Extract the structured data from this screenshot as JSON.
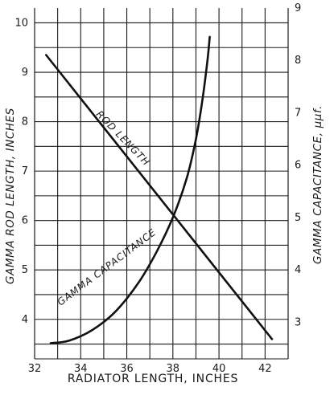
{
  "chart_data": {
    "type": "line",
    "xlabel": "RADIATOR LENGTH, INCHES",
    "ylabel_left": "GAMMA ROD LENGTH, INCHES",
    "ylabel_right": "GAMMA CAPACITANCE, μμf.",
    "xlim": [
      32,
      43
    ],
    "ylim_left": [
      3.2,
      10.3
    ],
    "ylim_right": [
      2.3,
      9.0
    ],
    "x_ticks": [
      32,
      34,
      36,
      38,
      40,
      42
    ],
    "y_ticks_left": [
      4,
      5,
      6,
      7,
      8,
      9,
      10
    ],
    "y_ticks_right": [
      3,
      4,
      5,
      6,
      7,
      8,
      9
    ],
    "grid": true,
    "series": [
      {
        "name": "ROD LENGTH",
        "axis": "left",
        "x": [
          32.5,
          42.3
        ],
        "y": [
          9.35,
          3.6
        ]
      },
      {
        "name": "GAMMA CAPACITANCE",
        "axis": "right",
        "x": [
          32.7,
          33.5,
          34.5,
          35.5,
          36.5,
          37.3,
          38.0,
          38.6,
          39.0,
          39.3,
          39.5,
          39.6
        ],
        "y": [
          2.6,
          2.65,
          2.85,
          3.2,
          3.75,
          4.35,
          5.0,
          5.75,
          6.5,
          7.3,
          8.0,
          8.45
        ]
      }
    ]
  }
}
